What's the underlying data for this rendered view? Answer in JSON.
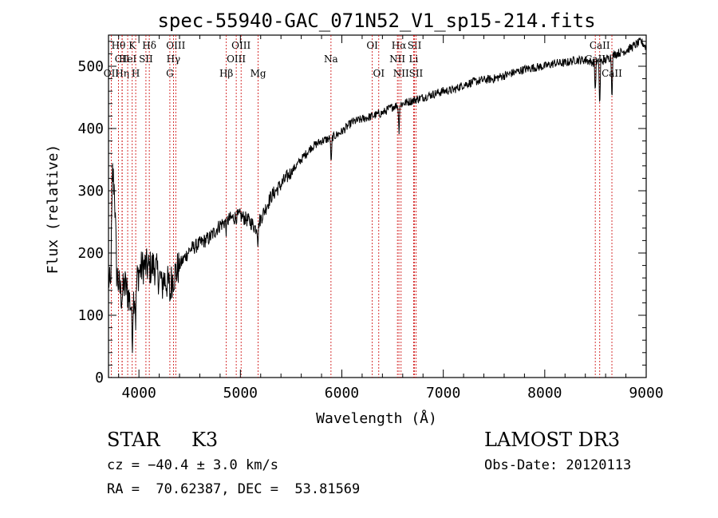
{
  "chart_data": {
    "type": "line",
    "title": "spec-55940-GAC_071N52_V1_sp15-214.fits",
    "xlabel": "Wavelength (Å)",
    "ylabel": "Flux (relative)",
    "xlim": [
      3700,
      9000
    ],
    "ylim": [
      0,
      550
    ],
    "xticks": [
      4000,
      5000,
      6000,
      7000,
      8000,
      9000
    ],
    "xtick_labels": [
      "4000",
      "5000",
      "6000",
      "7000",
      "8000",
      "9000"
    ],
    "yticks": [
      0,
      100,
      200,
      300,
      400,
      500
    ],
    "ytick_labels": [
      "0",
      "100",
      "200",
      "300",
      "400",
      "500"
    ],
    "grid": false,
    "series": [
      {
        "name": "spectrum",
        "anchors": [
          [
            3700,
            160
          ],
          [
            3720,
            140
          ],
          [
            3740,
            330
          ],
          [
            3760,
            300
          ],
          [
            3780,
            170
          ],
          [
            3800,
            150
          ],
          [
            3830,
            130
          ],
          [
            3860,
            150
          ],
          [
            3900,
            130
          ],
          [
            3930,
            110
          ],
          [
            3970,
            150
          ],
          [
            4000,
            170
          ],
          [
            4050,
            180
          ],
          [
            4100,
            175
          ],
          [
            4150,
            180
          ],
          [
            4200,
            160
          ],
          [
            4250,
            158
          ],
          [
            4300,
            148
          ],
          [
            4350,
            165
          ],
          [
            4400,
            180
          ],
          [
            4500,
            205
          ],
          [
            4600,
            215
          ],
          [
            4700,
            225
          ],
          [
            4800,
            245
          ],
          [
            4900,
            255
          ],
          [
            5000,
            260
          ],
          [
            5100,
            250
          ],
          [
            5150,
            240
          ],
          [
            5200,
            255
          ],
          [
            5300,
            290
          ],
          [
            5400,
            310
          ],
          [
            5500,
            330
          ],
          [
            5600,
            350
          ],
          [
            5700,
            370
          ],
          [
            5800,
            380
          ],
          [
            5900,
            385
          ],
          [
            6000,
            395
          ],
          [
            6100,
            410
          ],
          [
            6200,
            415
          ],
          [
            6300,
            420
          ],
          [
            6400,
            425
          ],
          [
            6500,
            435
          ],
          [
            6600,
            440
          ],
          [
            6700,
            445
          ],
          [
            6800,
            450
          ],
          [
            6900,
            455
          ],
          [
            7000,
            460
          ],
          [
            7100,
            462
          ],
          [
            7200,
            470
          ],
          [
            7300,
            475
          ],
          [
            7400,
            478
          ],
          [
            7500,
            480
          ],
          [
            7600,
            485
          ],
          [
            7700,
            490
          ],
          [
            7800,
            495
          ],
          [
            7900,
            498
          ],
          [
            8000,
            500
          ],
          [
            8100,
            505
          ],
          [
            8200,
            505
          ],
          [
            8300,
            510
          ],
          [
            8400,
            510
          ],
          [
            8500,
            505
          ],
          [
            8600,
            510
          ],
          [
            8700,
            520
          ],
          [
            8800,
            525
          ],
          [
            8900,
            535
          ],
          [
            8950,
            540
          ],
          [
            9000,
            530
          ]
        ],
        "absorption": [
          [
            3934,
            -60
          ],
          [
            3968,
            -55
          ],
          [
            4227,
            -20
          ],
          [
            4308,
            -25
          ],
          [
            4861,
            -15
          ],
          [
            5173,
            -30
          ],
          [
            5895,
            -45
          ],
          [
            6563,
            -45
          ],
          [
            8498,
            -50
          ],
          [
            8542,
            -80
          ],
          [
            8662,
            -70
          ]
        ]
      }
    ],
    "lines": [
      {
        "label": "Hθ",
        "wave": 3798,
        "row": 1
      },
      {
        "label": "CII",
        "wave": 3834,
        "row": 2
      },
      {
        "label": "OII",
        "wave": 3727,
        "row": 3
      },
      {
        "label": "Hη",
        "wave": 3835,
        "row": 3
      },
      {
        "label": "K",
        "wave": 3934,
        "row": 1
      },
      {
        "label": "HeI",
        "wave": 3889,
        "row": 2
      },
      {
        "label": "SII",
        "wave": 4069,
        "row": 2
      },
      {
        "label": "H",
        "wave": 3968,
        "row": 3
      },
      {
        "label": "Hδ",
        "wave": 4102,
        "row": 1
      },
      {
        "label": "OIII",
        "wave": 4363,
        "row": 1
      },
      {
        "label": "Hγ",
        "wave": 4340,
        "row": 2
      },
      {
        "label": "G",
        "wave": 4305,
        "row": 3
      },
      {
        "label": "OIII",
        "wave": 5007,
        "row": 1
      },
      {
        "label": "OIII",
        "wave": 4959,
        "row": 2
      },
      {
        "label": "Hβ",
        "wave": 4861,
        "row": 3
      },
      {
        "label": "Mg",
        "wave": 5175,
        "row": 3
      },
      {
        "label": "Na",
        "wave": 5893,
        "row": 2
      },
      {
        "label": "OI",
        "wave": 6300,
        "row": 1
      },
      {
        "label": "OI",
        "wave": 6364,
        "row": 3
      },
      {
        "label": "Hα",
        "wave": 6563,
        "row": 1
      },
      {
        "label": "SII",
        "wave": 6716,
        "row": 1
      },
      {
        "label": "NII",
        "wave": 6548,
        "row": 2
      },
      {
        "label": "Li",
        "wave": 6707,
        "row": 2
      },
      {
        "label": "NII",
        "wave": 6584,
        "row": 3
      },
      {
        "label": "SII",
        "wave": 6731,
        "row": 3
      },
      {
        "label": "CaII",
        "wave": 8542,
        "row": 1
      },
      {
        "label": "CaII",
        "wave": 8498,
        "row": 2
      },
      {
        "label": "CaII",
        "wave": 8662,
        "row": 3
      }
    ]
  },
  "info": {
    "class": "STAR",
    "subclass": "K3",
    "survey": "LAMOST DR3",
    "cz": "cz = −40.4 ± 3.0 km/s",
    "obs_date": "Obs-Date: 20120113",
    "radec": "RA =  70.62387, DEC =  53.81569"
  }
}
